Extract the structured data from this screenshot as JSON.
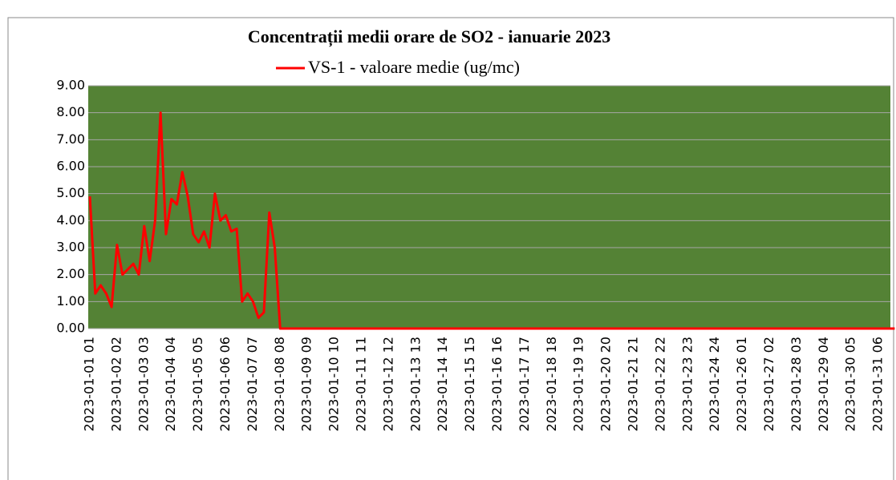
{
  "chart_data": {
    "type": "line",
    "title": "Concentrații medii orare de SO2 - ianuarie 2023",
    "categories": [
      "2023-01-01 01",
      null,
      null,
      null,
      null,
      "2023-01-02 02",
      null,
      null,
      null,
      null,
      "2023-01-03 03",
      null,
      null,
      null,
      null,
      "2023-01-04 04",
      null,
      null,
      null,
      null,
      "2023-01-05 05",
      null,
      null,
      null,
      null,
      "2023-01-06 06",
      null,
      null,
      null,
      null,
      "2023-01-07 07",
      null,
      null,
      null,
      null,
      "2023-01-08 08",
      null,
      null,
      null,
      null,
      "2023-01-09 09",
      null,
      null,
      null,
      null,
      "2023-01-10 10",
      null,
      null,
      null,
      null,
      "2023-01-11 11",
      null,
      null,
      null,
      null,
      "2023-01-12 12",
      null,
      null,
      null,
      null,
      "2023-01-13 13",
      null,
      null,
      null,
      null,
      "2023-01-14 14",
      null,
      null,
      null,
      null,
      "2023-01-15 15",
      null,
      null,
      null,
      null,
      "2023-01-16 16",
      null,
      null,
      null,
      null,
      "2023-01-17 17",
      null,
      null,
      null,
      null,
      "2023-01-18 18",
      null,
      null,
      null,
      null,
      "2023-01-19 19",
      null,
      null,
      null,
      null,
      "2023-01-20 20",
      null,
      null,
      null,
      null,
      "2023-01-21 21",
      null,
      null,
      null,
      null,
      "2023-01-22 22",
      null,
      null,
      null,
      null,
      "2023-01-23 23",
      null,
      null,
      null,
      null,
      "2023-01-24 24",
      null,
      null,
      null,
      null,
      "2023-01-26 01",
      null,
      null,
      null,
      null,
      "2023-01-27 02",
      null,
      null,
      null,
      null,
      "2023-01-28 03",
      null,
      null,
      null,
      null,
      "2023-01-29 04",
      null,
      null,
      null,
      null,
      "2023-01-30 05",
      null,
      null,
      null,
      null,
      "2023-01-31 06",
      null,
      null,
      null
    ],
    "series": [
      {
        "name": "VS-1 - valoare medie  (ug/mc)",
        "color": "#ff0000",
        "values": [
          4.9,
          1.3,
          1.6,
          1.3,
          0.8,
          3.1,
          2.0,
          2.2,
          2.4,
          2.0,
          3.8,
          2.5,
          4.0,
          8.0,
          3.5,
          4.8,
          4.6,
          5.8,
          4.9,
          3.5,
          3.2,
          3.6,
          3.0,
          5.0,
          4.0,
          4.2,
          3.6,
          3.7,
          1.0,
          1.3,
          1.0,
          0.4,
          0.6,
          4.3,
          3.0,
          0,
          0,
          0,
          0,
          0,
          0,
          0,
          0,
          0,
          0,
          0,
          0,
          0,
          0,
          0,
          0,
          0,
          0,
          0,
          0,
          0,
          0,
          0,
          0,
          0,
          0,
          0,
          0,
          0,
          0,
          0,
          0,
          0,
          0,
          0,
          0,
          0,
          0,
          0,
          0,
          0,
          0,
          0,
          0,
          0,
          0,
          0,
          0,
          0,
          0,
          0,
          0,
          0,
          0,
          0,
          0,
          0,
          0,
          0,
          0,
          0,
          0,
          0,
          0,
          0,
          0,
          0,
          0,
          0,
          0,
          0,
          0,
          0,
          0,
          0,
          0,
          0,
          0,
          0,
          0,
          0,
          0,
          0,
          0,
          0,
          0,
          0,
          0,
          0,
          0,
          0,
          0,
          0,
          0,
          0,
          0,
          0,
          0,
          0,
          0,
          0,
          0,
          0,
          0,
          0,
          0,
          0,
          0,
          0,
          0,
          0,
          0,
          0,
          0
        ]
      }
    ],
    "ylim": [
      0,
      9
    ],
    "yticks": [
      {
        "value": 0,
        "label": "0.00"
      },
      {
        "value": 1,
        "label": "1.00"
      },
      {
        "value": 2,
        "label": "2.00"
      },
      {
        "value": 3,
        "label": "3.00"
      },
      {
        "value": 4,
        "label": "4.00"
      },
      {
        "value": 5,
        "label": "5.00"
      },
      {
        "value": 6,
        "label": "6.00"
      },
      {
        "value": 7,
        "label": "7.00"
      },
      {
        "value": 8,
        "label": "8.00"
      },
      {
        "value": 9,
        "label": "9.00"
      }
    ],
    "grid": true,
    "plot_background": "#548235",
    "legend": "top"
  }
}
